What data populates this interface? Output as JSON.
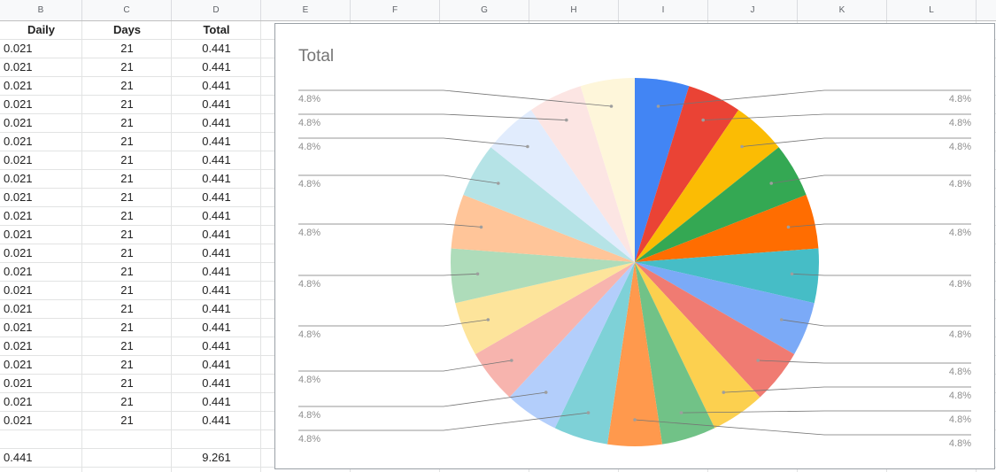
{
  "columns": [
    "B",
    "C",
    "D",
    "E",
    "F",
    "G",
    "H",
    "I",
    "J",
    "K",
    "L"
  ],
  "table": {
    "headers": [
      "Daily",
      "Days",
      "Total"
    ],
    "rows": [
      [
        "0.021",
        "21",
        "0.441"
      ],
      [
        "0.021",
        "21",
        "0.441"
      ],
      [
        "0.021",
        "21",
        "0.441"
      ],
      [
        "0.021",
        "21",
        "0.441"
      ],
      [
        "0.021",
        "21",
        "0.441"
      ],
      [
        "0.021",
        "21",
        "0.441"
      ],
      [
        "0.021",
        "21",
        "0.441"
      ],
      [
        "0.021",
        "21",
        "0.441"
      ],
      [
        "0.021",
        "21",
        "0.441"
      ],
      [
        "0.021",
        "21",
        "0.441"
      ],
      [
        "0.021",
        "21",
        "0.441"
      ],
      [
        "0.021",
        "21",
        "0.441"
      ],
      [
        "0.021",
        "21",
        "0.441"
      ],
      [
        "0.021",
        "21",
        "0.441"
      ],
      [
        "0.021",
        "21",
        "0.441"
      ],
      [
        "0.021",
        "21",
        "0.441"
      ],
      [
        "0.021",
        "21",
        "0.441"
      ],
      [
        "0.021",
        "21",
        "0.441"
      ],
      [
        "0.021",
        "21",
        "0.441"
      ],
      [
        "0.021",
        "21",
        "0.441"
      ],
      [
        "0.021",
        "21",
        "0.441"
      ]
    ],
    "totals": [
      "0.441",
      "",
      "9.261"
    ]
  },
  "chart_data": {
    "type": "pie",
    "title": "Total",
    "values": [
      0.441,
      0.441,
      0.441,
      0.441,
      0.441,
      0.441,
      0.441,
      0.441,
      0.441,
      0.441,
      0.441,
      0.441,
      0.441,
      0.441,
      0.441,
      0.441,
      0.441,
      0.441,
      0.441,
      0.441,
      0.441
    ],
    "data_labels": [
      "4.8%",
      "4.8%",
      "4.8%",
      "4.8%",
      "4.8%",
      "4.8%",
      "4.8%",
      "4.8%",
      "4.8%",
      "4.8%",
      "4.8%",
      "4.8%",
      "4.8%",
      "4.8%",
      "4.8%",
      "4.8%",
      "4.8%",
      "4.8%",
      "4.8%",
      "4.8%",
      "4.8%"
    ],
    "colors": [
      "#4285f4",
      "#ea4335",
      "#fbbc04",
      "#34a853",
      "#ff6d01",
      "#46bdc6",
      "#7baaf7",
      "#f07b72",
      "#fcd04f",
      "#71c287",
      "#ff994d",
      "#7ed1d7",
      "#b3cefb",
      "#f7b4ae",
      "#fde49b",
      "#aedcba",
      "#ffc599",
      "#b5e3e6",
      "#e1ecfd",
      "#fce5e3",
      "#fef6da"
    ],
    "start_angle": "top, clockwise",
    "legend": "none"
  }
}
